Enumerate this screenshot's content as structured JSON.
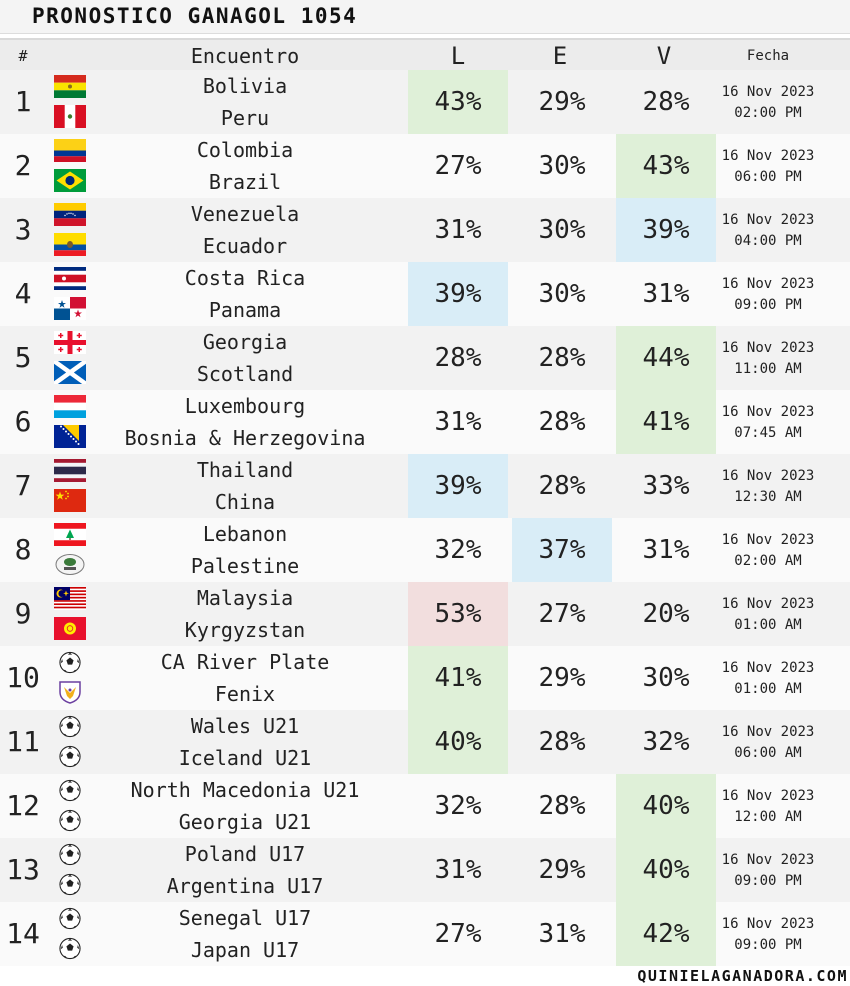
{
  "title": "PRONOSTICO GANAGOL 1054",
  "header": {
    "num": "#",
    "encuentro": "Encuentro",
    "L": "L",
    "E": "E",
    "V": "V",
    "fecha": "Fecha"
  },
  "colors": {
    "green": "#dff0d8",
    "blue": "#d9edf7",
    "red": "#f2dede"
  },
  "matches": [
    {
      "num": "1",
      "home": "Bolivia",
      "away": "Peru",
      "home_flag": "bolivia-flag",
      "away_flag": "peru-flag",
      "L": "43%",
      "E": "29%",
      "V": "28%",
      "highlight": "L",
      "highlight_color": "green",
      "date": "16 Nov 2023",
      "time": "02:00 PM"
    },
    {
      "num": "2",
      "home": "Colombia",
      "away": "Brazil",
      "home_flag": "colombia-flag",
      "away_flag": "brazil-flag",
      "L": "27%",
      "E": "30%",
      "V": "43%",
      "highlight": "V",
      "highlight_color": "green",
      "date": "16 Nov 2023",
      "time": "06:00 PM"
    },
    {
      "num": "3",
      "home": "Venezuela",
      "away": "Ecuador",
      "home_flag": "venezuela-flag",
      "away_flag": "ecuador-flag",
      "L": "31%",
      "E": "30%",
      "V": "39%",
      "highlight": "V",
      "highlight_color": "blue",
      "date": "16 Nov 2023",
      "time": "04:00 PM"
    },
    {
      "num": "4",
      "home": "Costa Rica",
      "away": "Panama",
      "home_flag": "costa-rica-flag",
      "away_flag": "panama-flag",
      "L": "39%",
      "E": "30%",
      "V": "31%",
      "highlight": "L",
      "highlight_color": "blue",
      "date": "16 Nov 2023",
      "time": "09:00 PM"
    },
    {
      "num": "5",
      "home": "Georgia",
      "away": "Scotland",
      "home_flag": "georgia-flag",
      "away_flag": "scotland-flag",
      "L": "28%",
      "E": "28%",
      "V": "44%",
      "highlight": "V",
      "highlight_color": "green",
      "date": "16 Nov 2023",
      "time": "11:00 AM"
    },
    {
      "num": "6",
      "home": "Luxembourg",
      "away": "Bosnia & Herzegovina",
      "home_flag": "luxembourg-flag",
      "away_flag": "bosnia-flag",
      "L": "31%",
      "E": "28%",
      "V": "41%",
      "highlight": "V",
      "highlight_color": "green",
      "date": "16 Nov 2023",
      "time": "07:45 AM"
    },
    {
      "num": "7",
      "home": "Thailand",
      "away": "China",
      "home_flag": "thailand-flag",
      "away_flag": "china-flag",
      "L": "39%",
      "E": "28%",
      "V": "33%",
      "highlight": "L",
      "highlight_color": "blue",
      "date": "16 Nov 2023",
      "time": "12:30 AM"
    },
    {
      "num": "8",
      "home": "Lebanon",
      "away": "Palestine",
      "home_flag": "lebanon-flag",
      "away_flag": "palestine-crest",
      "L": "32%",
      "E": "37%",
      "V": "31%",
      "highlight": "E",
      "highlight_color": "blue",
      "date": "16 Nov 2023",
      "time": "02:00 AM"
    },
    {
      "num": "9",
      "home": "Malaysia",
      "away": "Kyrgyzstan",
      "home_flag": "malaysia-flag",
      "away_flag": "kyrgyzstan-flag",
      "L": "53%",
      "E": "27%",
      "V": "20%",
      "highlight": "L",
      "highlight_color": "red",
      "date": "16 Nov 2023",
      "time": "01:00 AM"
    },
    {
      "num": "10",
      "home": "CA River Plate",
      "away": "Fenix",
      "home_flag": "soccer-ball-icon",
      "away_flag": "fenix-crest",
      "L": "41%",
      "E": "29%",
      "V": "30%",
      "highlight": "L",
      "highlight_color": "green",
      "date": "16 Nov 2023",
      "time": "01:00 AM"
    },
    {
      "num": "11",
      "home": "Wales U21",
      "away": "Iceland U21",
      "home_flag": "soccer-ball-icon",
      "away_flag": "soccer-ball-icon",
      "L": "40%",
      "E": "28%",
      "V": "32%",
      "highlight": "L",
      "highlight_color": "green",
      "date": "16 Nov 2023",
      "time": "06:00 AM"
    },
    {
      "num": "12",
      "home": "North Macedonia U21",
      "away": "Georgia U21",
      "home_flag": "soccer-ball-icon",
      "away_flag": "soccer-ball-icon",
      "L": "32%",
      "E": "28%",
      "V": "40%",
      "highlight": "V",
      "highlight_color": "green",
      "date": "16 Nov 2023",
      "time": "12:00 AM"
    },
    {
      "num": "13",
      "home": "Poland U17",
      "away": "Argentina U17",
      "home_flag": "soccer-ball-icon",
      "away_flag": "soccer-ball-icon",
      "L": "31%",
      "E": "29%",
      "V": "40%",
      "highlight": "V",
      "highlight_color": "green",
      "date": "16 Nov 2023",
      "time": "09:00 PM"
    },
    {
      "num": "14",
      "home": "Senegal U17",
      "away": "Japan U17",
      "home_flag": "soccer-ball-icon",
      "away_flag": "soccer-ball-icon",
      "L": "27%",
      "E": "31%",
      "V": "42%",
      "highlight": "V",
      "highlight_color": "green",
      "date": "16 Nov 2023",
      "time": "09:00 PM"
    }
  ],
  "footer": "QUINIELAGANADORA.COM"
}
